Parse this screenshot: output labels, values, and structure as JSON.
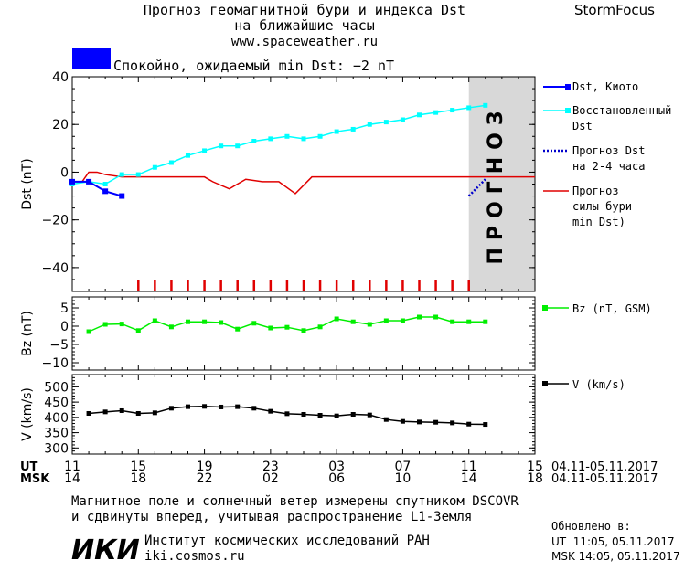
{
  "header": {
    "title_line1": "Прогноз геомагнитной бури и индекса Dst",
    "title_line2": "на ближайшие часы",
    "url": "www.spaceweather.ru",
    "brand": "StormFocus"
  },
  "status": {
    "color": "#0000ff",
    "text": "Спокойно, ожидаемый min Dst: −2 nT"
  },
  "colors": {
    "dst_kyoto": "#0000ff",
    "dst_restored": "#00ffff",
    "dst_forecast": "#0000cc",
    "storm_forecast": "#e00000",
    "bz": "#00ee00",
    "v": "#000000",
    "forecast_zone": "#d8d8d8"
  },
  "chart_data": [
    {
      "type": "line",
      "panel": "dst",
      "ylabel": "Dst (nT)",
      "ylim": [
        -50,
        40
      ],
      "yticks": [
        40,
        20,
        0,
        -20,
        -40
      ],
      "x_hours_range": [
        0,
        28
      ],
      "forecast_start_hour": 24,
      "forecast_label": "ПРОГНОЗ",
      "series": [
        {
          "name": "Dst, Киото",
          "x": [
            0,
            1,
            2,
            3
          ],
          "values": [
            -4,
            -4,
            -8,
            -10
          ]
        },
        {
          "name": "Восстановленный Dst",
          "x": [
            0,
            1,
            2,
            3,
            4,
            5,
            6,
            7,
            8,
            9,
            10,
            11,
            12,
            13,
            14,
            15,
            16,
            17,
            18,
            19,
            20,
            21,
            22,
            23,
            24,
            25
          ],
          "values": [
            -5,
            -4,
            -5,
            -1,
            -1,
            2,
            4,
            7,
            9,
            11,
            11,
            13,
            14,
            15,
            14,
            15,
            17,
            18,
            20,
            21,
            22,
            24,
            25,
            26,
            27,
            28
          ]
        },
        {
          "name": "Прогноз Dst на 2-4 часа",
          "x": [
            24,
            25
          ],
          "values": [
            -10,
            -3
          ]
        },
        {
          "name": "Прогноз силы бури (min Dst)",
          "x": [
            0,
            0.6,
            1,
            1.5,
            2,
            3,
            6,
            8,
            8.5,
            9.5,
            10.5,
            11.5,
            12.5,
            13.5,
            14.5,
            16,
            20,
            28
          ],
          "values": [
            -4,
            -4,
            0,
            0,
            -1,
            -2,
            -2,
            -2,
            -4,
            -7,
            -3,
            -4,
            -4,
            -9,
            -2,
            -2,
            -2,
            -2
          ]
        }
      ],
      "impulse_x": [
        4,
        5,
        6,
        7,
        8,
        9,
        10,
        11,
        12,
        13,
        14,
        15,
        16,
        17,
        18,
        19,
        20,
        21,
        22,
        23,
        24
      ]
    },
    {
      "type": "line",
      "panel": "bz",
      "ylabel": "Bz (nT)",
      "ylim": [
        -12,
        8
      ],
      "yticks": [
        5,
        0,
        -5,
        -10
      ],
      "series": [
        {
          "name": "Bz (nT, GSM)",
          "x": [
            1,
            2,
            3,
            4,
            5,
            6,
            7,
            8,
            9,
            10,
            11,
            12,
            13,
            14,
            15,
            16,
            17,
            18,
            19,
            20,
            21,
            22,
            23,
            24,
            25
          ],
          "values": [
            -1.5,
            0.5,
            0.6,
            -1.2,
            1.5,
            -0.2,
            1.2,
            1.2,
            1.0,
            -0.8,
            0.8,
            -0.5,
            -0.3,
            -1.2,
            -0.2,
            2.0,
            1.2,
            0.5,
            1.5,
            1.5,
            2.5,
            2.5,
            1.2,
            1.2,
            1.2
          ]
        }
      ]
    },
    {
      "type": "line",
      "panel": "v",
      "ylabel": "V (km/s)",
      "ylim": [
        280,
        540
      ],
      "yticks": [
        500,
        450,
        400,
        350,
        300
      ],
      "series": [
        {
          "name": "V (km/s)",
          "x": [
            1,
            2,
            3,
            4,
            5,
            6,
            7,
            8,
            9,
            10,
            11,
            12,
            13,
            14,
            15,
            16,
            17,
            18,
            19,
            20,
            21,
            22,
            23,
            24,
            25
          ],
          "values": [
            413,
            418,
            422,
            413,
            415,
            430,
            435,
            436,
            434,
            435,
            430,
            420,
            412,
            410,
            407,
            405,
            410,
            408,
            393,
            387,
            385,
            384,
            382,
            378,
            377
          ]
        }
      ]
    }
  ],
  "axis": {
    "ut_label": "UT",
    "msk_label": "MSK",
    "ut_ticks": [
      "11",
      "15",
      "19",
      "23",
      "03",
      "07",
      "11",
      "15"
    ],
    "msk_ticks": [
      "14",
      "18",
      "22",
      "02",
      "06",
      "10",
      "14",
      "18"
    ],
    "ut_range": "04.11-05.11.2017",
    "msk_range": "04.11-05.11.2017"
  },
  "footer": {
    "note_line1": "Магнитное поле и солнечный ветер измерены спутником DSCOVR",
    "note_line2": "и сдвинуты вперед, учитывая распространение L1-Земля",
    "logo_text": "ИКИ",
    "institute": "Институт космических исследований РАН",
    "institute_url": "iki.cosmos.ru",
    "updated_label": "Обновлено в:",
    "updated_ut": "UT  11:05, 05.11.2017",
    "updated_msk": "MSK 14:05, 05.11.2017"
  }
}
